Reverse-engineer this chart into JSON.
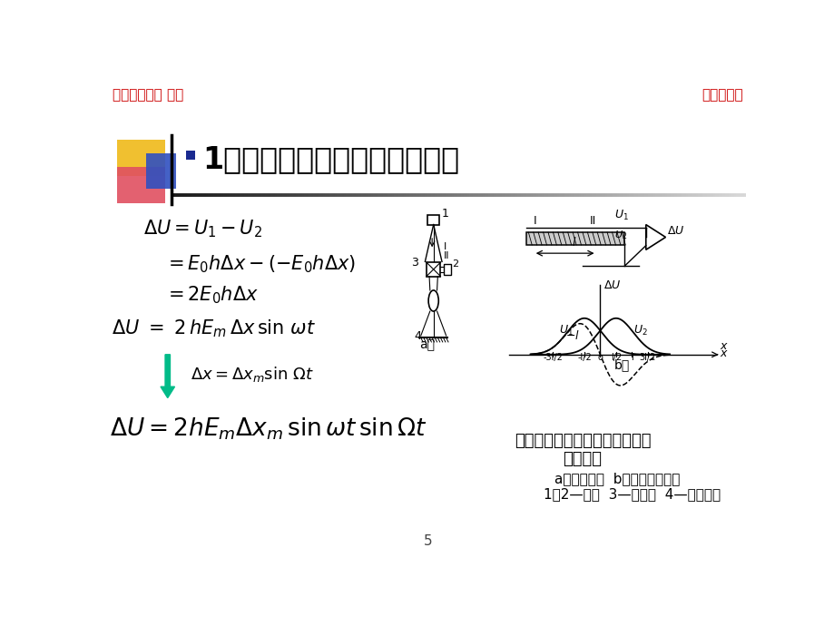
{
  "bg_color": "#ffffff",
  "header_left": "南京理工大学 何勇",
  "header_right": "非相干检测",
  "header_color": "#cc0000",
  "title_text": "1．双通道差分调制式像分析器",
  "title_color": "#000000",
  "title_fontsize": 24,
  "arrow_color": "#00bb88",
  "caption1": "双通道差分调制式狭缝象分析器",
  "caption2": "工作原理",
  "caption3": "a）光路原理  b）差分定位特性",
  "caption4": "1、2—狭缝  3—分束镜  4—被测线纹"
}
